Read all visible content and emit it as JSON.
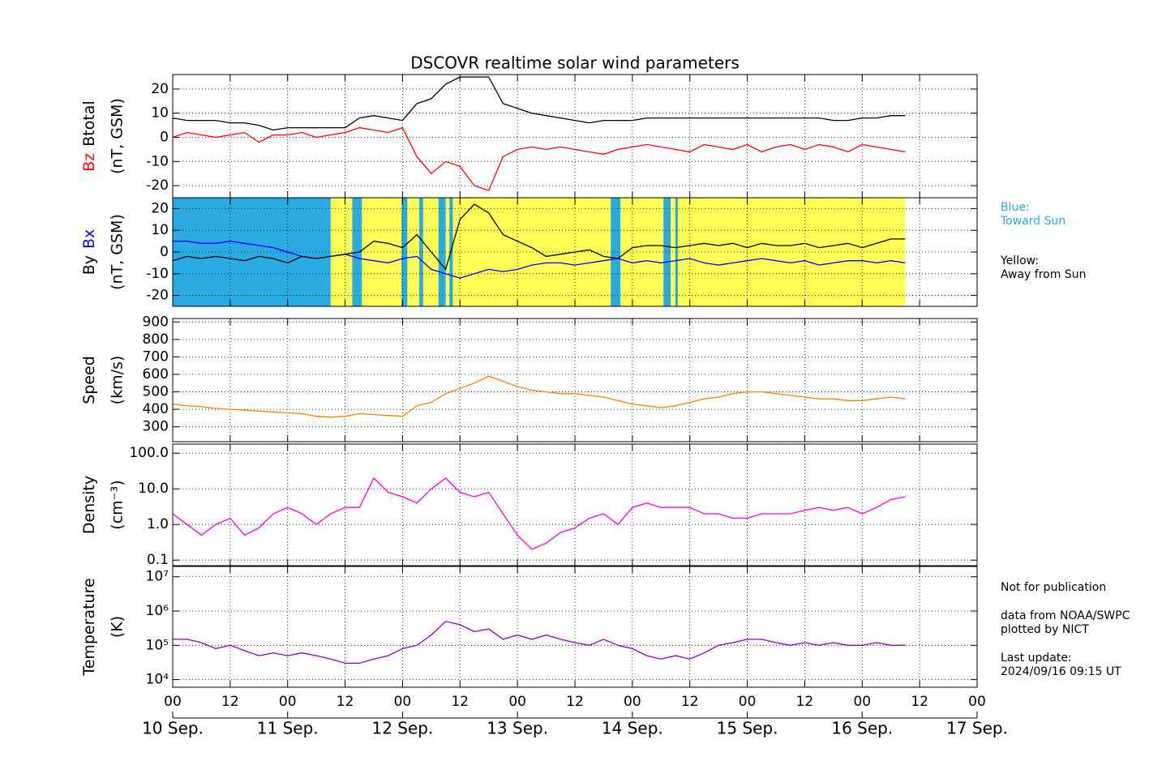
{
  "chart_data": [
    {
      "type": "line",
      "title": "DSCOVR realtime solar wind parameters",
      "ylabel_parts": [
        {
          "text": "Bz",
          "color": "#ff0000"
        },
        {
          "text": "Btotal",
          "color": "#000000"
        }
      ],
      "ylabel_unit": "(nT, GSM)",
      "xlim": [
        0,
        168
      ],
      "ylim": [
        -25,
        26
      ],
      "yticks": [
        -20,
        -10,
        0,
        10,
        20
      ],
      "grid": true,
      "log": false,
      "x": [
        0,
        3,
        6,
        9,
        12,
        15,
        18,
        21,
        24,
        27,
        30,
        33,
        36,
        39,
        42,
        45,
        48,
        51,
        54,
        57,
        60,
        63,
        66,
        69,
        72,
        75,
        78,
        81,
        84,
        87,
        90,
        93,
        96,
        99,
        102,
        105,
        108,
        111,
        114,
        117,
        120,
        123,
        126,
        129,
        132,
        135,
        138,
        141,
        144,
        147,
        150,
        153
      ],
      "series": [
        {
          "name": "Bz",
          "color": "#ff0000",
          "values": [
            0,
            2,
            1,
            0,
            1,
            2,
            -2,
            1,
            1,
            2,
            0,
            1,
            2,
            4,
            3,
            2,
            4,
            -8,
            -15,
            -10,
            -12,
            -20,
            -22,
            -8,
            -5,
            -4,
            -5,
            -4,
            -5,
            -6,
            -7,
            -5,
            -4,
            -3,
            -4,
            -5,
            -6,
            -3,
            -4,
            -5,
            -3,
            -6,
            -4,
            -3,
            -5,
            -3,
            -4,
            -6,
            -3,
            -4,
            -5,
            -6
          ]
        },
        {
          "name": "Btotal",
          "color": "#000000",
          "values": [
            8,
            7,
            7,
            7,
            6,
            6,
            5,
            3,
            4,
            4,
            4,
            4,
            4,
            8,
            9,
            8,
            7,
            14,
            16,
            22,
            25,
            25,
            25,
            14,
            12,
            10,
            9,
            8,
            7,
            6,
            7,
            7,
            7,
            8,
            8,
            8,
            8,
            8,
            8,
            8,
            8,
            8,
            8,
            8,
            8,
            8,
            7,
            7,
            8,
            8,
            9,
            9
          ]
        }
      ]
    },
    {
      "type": "line",
      "ylabel_parts": [
        {
          "text": "By",
          "color": "#000000"
        },
        {
          "text": "Bx",
          "color": "#0000ff"
        }
      ],
      "ylabel_unit": "(nT, GSM)",
      "xlim": [
        0,
        168
      ],
      "ylim": [
        -25,
        25
      ],
      "yticks": [
        -20,
        -10,
        0,
        10,
        20
      ],
      "grid": true,
      "log": false,
      "sectors": [
        {
          "start": 0,
          "end": 33,
          "color": "#29abe2"
        },
        {
          "start": 33,
          "end": 153,
          "color": "#ffff55"
        },
        {
          "start": 37.5,
          "end": 39.5,
          "color": "#29abe2"
        },
        {
          "start": 47.8,
          "end": 49,
          "color": "#29abe2"
        },
        {
          "start": 51.5,
          "end": 52.3,
          "color": "#29abe2"
        },
        {
          "start": 55.5,
          "end": 57,
          "color": "#29abe2"
        },
        {
          "start": 57.8,
          "end": 58.5,
          "color": "#29abe2"
        },
        {
          "start": 91.5,
          "end": 93.5,
          "color": "#29abe2"
        },
        {
          "start": 102.5,
          "end": 104,
          "color": "#29abe2"
        },
        {
          "start": 105,
          "end": 105.5,
          "color": "#29abe2"
        }
      ],
      "x": [
        0,
        3,
        6,
        9,
        12,
        15,
        18,
        21,
        24,
        27,
        30,
        33,
        36,
        39,
        42,
        45,
        48,
        51,
        54,
        57,
        60,
        63,
        66,
        69,
        72,
        75,
        78,
        81,
        84,
        87,
        90,
        93,
        96,
        99,
        102,
        105,
        108,
        111,
        114,
        117,
        120,
        123,
        126,
        129,
        132,
        135,
        138,
        141,
        144,
        147,
        150,
        153
      ],
      "series": [
        {
          "name": "Bx",
          "color": "#0000ff",
          "values": [
            5,
            5,
            4,
            4,
            5,
            4,
            3,
            2,
            0,
            -2,
            -3,
            -2,
            -1,
            -3,
            -4,
            -5,
            -3,
            -2,
            -8,
            -10,
            -12,
            -10,
            -8,
            -9,
            -8,
            -6,
            -5,
            -5,
            -6,
            -5,
            -4,
            -3,
            -5,
            -4,
            -5,
            -4,
            -3,
            -5,
            -6,
            -5,
            -4,
            -3,
            -4,
            -5,
            -4,
            -6,
            -5,
            -4,
            -4,
            -5,
            -4,
            -5
          ]
        },
        {
          "name": "By",
          "color": "#000000",
          "values": [
            -4,
            -2,
            -3,
            -2,
            -3,
            -4,
            -2,
            -3,
            -5,
            -2,
            -3,
            -2,
            -1,
            0,
            5,
            4,
            2,
            8,
            0,
            -8,
            15,
            22,
            18,
            8,
            5,
            2,
            -2,
            -1,
            0,
            1,
            -2,
            -3,
            2,
            3,
            3,
            2,
            3,
            4,
            3,
            4,
            2,
            4,
            3,
            3,
            4,
            2,
            3,
            4,
            2,
            4,
            6,
            6
          ]
        }
      ]
    },
    {
      "type": "line",
      "ylabel_parts": [
        {
          "text": "Speed",
          "color": "#000000"
        }
      ],
      "ylabel_unit": "(km/s)",
      "xlim": [
        0,
        168
      ],
      "ylim": [
        215,
        920
      ],
      "yticks": [
        300,
        400,
        500,
        600,
        700,
        800,
        900
      ],
      "grid": true,
      "log": false,
      "x": [
        0,
        3,
        6,
        9,
        12,
        15,
        18,
        21,
        24,
        27,
        30,
        33,
        36,
        39,
        42,
        45,
        48,
        51,
        54,
        57,
        60,
        63,
        66,
        69,
        72,
        75,
        78,
        81,
        84,
        87,
        90,
        93,
        96,
        99,
        102,
        105,
        108,
        111,
        114,
        117,
        120,
        123,
        126,
        129,
        132,
        135,
        138,
        141,
        144,
        147,
        150,
        153
      ],
      "series": [
        {
          "name": "Speed",
          "color": "#ff8000",
          "values": [
            430,
            420,
            415,
            405,
            400,
            395,
            390,
            385,
            380,
            375,
            360,
            355,
            360,
            375,
            370,
            365,
            360,
            420,
            440,
            490,
            520,
            550,
            590,
            560,
            530,
            510,
            500,
            490,
            490,
            480,
            470,
            450,
            430,
            420,
            410,
            420,
            440,
            460,
            470,
            490,
            500,
            500,
            490,
            480,
            470,
            460,
            460,
            450,
            450,
            460,
            470,
            460
          ]
        }
      ]
    },
    {
      "type": "line",
      "ylabel_parts": [
        {
          "text": "Density",
          "color": "#000000"
        }
      ],
      "ylabel_unit": "(cm⁻³)",
      "xlim": [
        0,
        168
      ],
      "ylim": [
        0.07,
        180
      ],
      "yticks": [
        0.1,
        {
          "value": 1,
          "label": "1.0"
        },
        {
          "value": 10,
          "label": "10.0"
        },
        {
          "value": 100,
          "label": "100.0"
        }
      ],
      "grid": true,
      "log": true,
      "x": [
        0,
        3,
        6,
        9,
        12,
        15,
        18,
        21,
        24,
        27,
        30,
        33,
        36,
        39,
        42,
        45,
        48,
        51,
        54,
        57,
        60,
        63,
        66,
        69,
        72,
        75,
        78,
        81,
        84,
        87,
        90,
        93,
        96,
        99,
        102,
        105,
        108,
        111,
        114,
        117,
        120,
        123,
        126,
        129,
        132,
        135,
        138,
        141,
        144,
        147,
        150,
        153
      ],
      "series": [
        {
          "name": "Density",
          "color": "#ff00dd",
          "values": [
            2,
            1,
            0.5,
            1,
            1.5,
            0.5,
            0.8,
            2,
            3,
            2,
            1,
            2,
            3,
            3,
            20,
            8,
            6,
            4,
            10,
            20,
            8,
            6,
            8,
            2,
            0.5,
            0.2,
            0.3,
            0.6,
            0.8,
            1.5,
            2,
            1,
            3,
            4,
            3,
            3,
            3,
            2,
            2,
            1.5,
            1.5,
            2,
            2,
            2,
            2.5,
            3,
            2.5,
            3,
            2,
            3,
            5,
            6
          ]
        }
      ]
    },
    {
      "type": "line",
      "ylabel_parts": [
        {
          "text": "Temperature",
          "color": "#000000"
        }
      ],
      "ylabel_unit": "(K)",
      "xlim": [
        0,
        168
      ],
      "ylim": [
        6000,
        20000000
      ],
      "yticks": [
        {
          "value": 10000,
          "label": "10⁴"
        },
        {
          "value": 100000,
          "label": "10⁵"
        },
        {
          "value": 1000000,
          "label": "10⁶"
        },
        {
          "value": 10000000,
          "label": "10⁷"
        }
      ],
      "grid": true,
      "log": true,
      "xticks": [
        {
          "value": 0,
          "label": "00"
        },
        {
          "value": 12,
          "label": "12"
        },
        {
          "value": 24,
          "label": "00"
        },
        {
          "value": 36,
          "label": "12"
        },
        {
          "value": 48,
          "label": "00"
        },
        {
          "value": 60,
          "label": "12"
        },
        {
          "value": 72,
          "label": "00"
        },
        {
          "value": 84,
          "label": "12"
        },
        {
          "value": 96,
          "label": "00"
        },
        {
          "value": 108,
          "label": "12"
        },
        {
          "value": 120,
          "label": "00"
        },
        {
          "value": 132,
          "label": "12"
        },
        {
          "value": 144,
          "label": "00"
        },
        {
          "value": 156,
          "label": "12"
        },
        {
          "value": 168,
          "label": "00"
        }
      ],
      "date_ticks": [
        {
          "value": 0,
          "label": "10 Sep."
        },
        {
          "value": 24,
          "label": "11 Sep."
        },
        {
          "value": 48,
          "label": "12 Sep."
        },
        {
          "value": 72,
          "label": "13 Sep."
        },
        {
          "value": 96,
          "label": "14 Sep."
        },
        {
          "value": 120,
          "label": "15 Sep."
        },
        {
          "value": 144,
          "label": "16 Sep."
        },
        {
          "value": 168,
          "label": "17 Sep."
        }
      ],
      "x": [
        0,
        3,
        6,
        9,
        12,
        15,
        18,
        21,
        24,
        27,
        30,
        33,
        36,
        39,
        42,
        45,
        48,
        51,
        54,
        57,
        60,
        63,
        66,
        69,
        72,
        75,
        78,
        81,
        84,
        87,
        90,
        93,
        96,
        99,
        102,
        105,
        108,
        111,
        114,
        117,
        120,
        123,
        126,
        129,
        132,
        135,
        138,
        141,
        144,
        147,
        150,
        153
      ],
      "series": [
        {
          "name": "Temperature",
          "color": "#8800cc",
          "values": [
            150000,
            150000,
            120000,
            80000,
            100000,
            70000,
            50000,
            60000,
            50000,
            60000,
            50000,
            40000,
            30000,
            30000,
            40000,
            50000,
            80000,
            100000,
            200000,
            500000,
            400000,
            250000,
            300000,
            150000,
            200000,
            150000,
            200000,
            150000,
            120000,
            100000,
            150000,
            100000,
            80000,
            50000,
            40000,
            50000,
            40000,
            60000,
            100000,
            120000,
            150000,
            150000,
            120000,
            100000,
            120000,
            100000,
            120000,
            100000,
            100000,
            120000,
            100000,
            100000
          ]
        }
      ]
    }
  ],
  "notes": {
    "blue": "Blue:",
    "toward": "Toward Sun",
    "yellow": "Yellow:",
    "away": "Away from Sun",
    "nfp": "Not for publication",
    "source": "data from NOAA/SWPC",
    "plotted": "plotted by NICT",
    "update_label": "Last update:",
    "update": "2024/09/16 09:15 UT"
  }
}
